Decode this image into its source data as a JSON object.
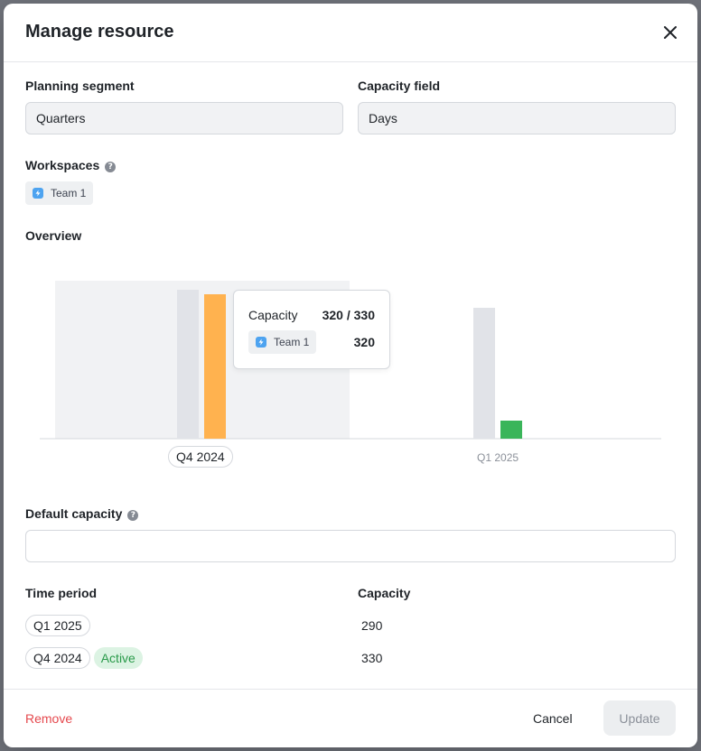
{
  "modal": {
    "title": "Manage resource"
  },
  "planning_segment": {
    "label": "Planning segment",
    "value": "Quarters"
  },
  "capacity_field": {
    "label": "Capacity field",
    "value": "Days"
  },
  "workspaces": {
    "label": "Workspaces",
    "items": [
      {
        "name": "Team 1"
      }
    ]
  },
  "overview": {
    "label": "Overview"
  },
  "chart_data": {
    "type": "bar",
    "categories": [
      "Q4 2024",
      "Q1 2025"
    ],
    "series": [
      {
        "name": "Capacity",
        "values": [
          330,
          290
        ],
        "color": "#e1e3e8"
      },
      {
        "name": "Team 1",
        "values": [
          320,
          40
        ],
        "colors": [
          "#ffb24f",
          "#3ab55a"
        ]
      }
    ],
    "ylim": [
      0,
      350
    ],
    "highlighted_category": "Q4 2024",
    "legend": "none",
    "grid": false
  },
  "tooltip": {
    "title": "Capacity",
    "ratio": "320 / 330",
    "team": "Team 1",
    "team_value": "320"
  },
  "default_capacity": {
    "label": "Default capacity",
    "value": ""
  },
  "table": {
    "col_period": "Time period",
    "col_capacity": "Capacity",
    "rows": [
      {
        "period": "Q1 2025",
        "capacity": "290",
        "badge": ""
      },
      {
        "period": "Q4 2024",
        "capacity": "330",
        "badge": "Active"
      }
    ]
  },
  "footer": {
    "remove": "Remove",
    "cancel": "Cancel",
    "update": "Update"
  },
  "colors": {
    "accent_orange": "#ffb24f",
    "accent_green": "#3ab55a",
    "danger": "#e5484d"
  }
}
